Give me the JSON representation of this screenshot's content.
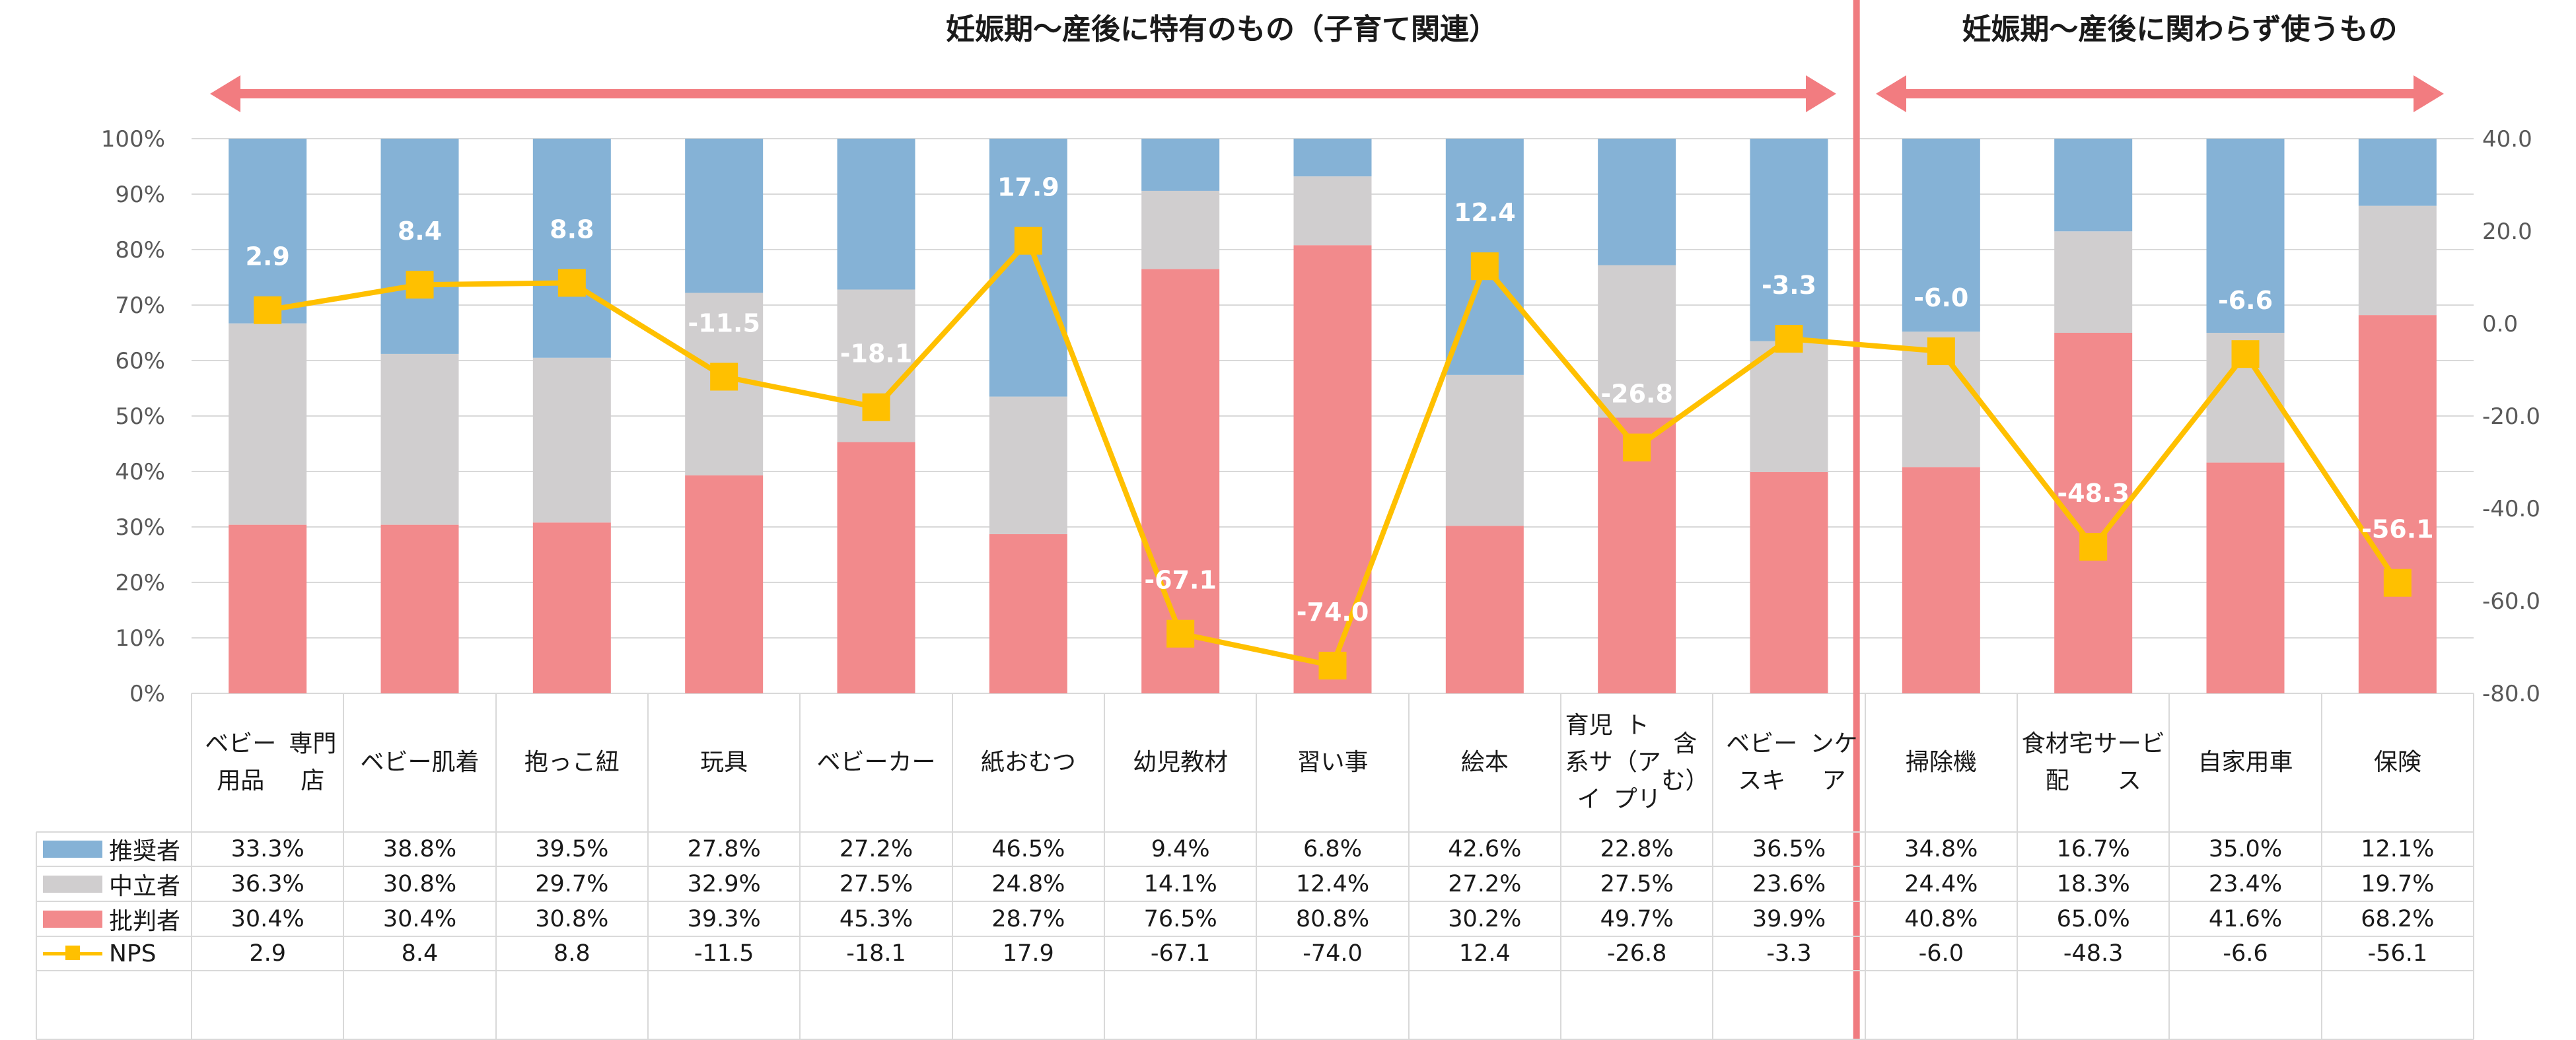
{
  "titles": {
    "section1": "妊娠期～産後に特有のもの（子育て関連）",
    "section2": "妊娠期～産後に関わらず使うもの"
  },
  "chart_data": {
    "type": "bar",
    "stacked": true,
    "categories": [
      "ベビー用品専門店",
      "ベビー肌着",
      "抱っこ紐",
      "玩具",
      "ベビーカー",
      "紙おむつ",
      "幼児教材",
      "習い事",
      "絵本",
      "育児系サイト（アプリ含む）",
      "ベビースキンケア",
      "掃除機",
      "食材宅配サービス",
      "自家用車",
      "保険"
    ],
    "category_lines": [
      [
        "ベビー用品",
        "専門店"
      ],
      [
        "ベビー肌着"
      ],
      [
        "抱っこ紐"
      ],
      [
        "玩具"
      ],
      [
        "ベビーカー"
      ],
      [
        "紙おむつ"
      ],
      [
        "幼児教材"
      ],
      [
        "習い事"
      ],
      [
        "絵本"
      ],
      [
        "育児系サイ",
        "ト（アプリ",
        "含む）"
      ],
      [
        "ベビースキ",
        "ンケア"
      ],
      [
        "掃除機"
      ],
      [
        "食材宅配",
        "サービス"
      ],
      [
        "自家用車"
      ],
      [
        "保険"
      ]
    ],
    "series": [
      {
        "name": "推奨者",
        "color": "#85B2D6",
        "values": [
          33.3,
          38.8,
          39.5,
          27.8,
          27.2,
          46.5,
          9.4,
          6.8,
          42.6,
          22.8,
          36.5,
          34.8,
          16.7,
          35.0,
          12.1
        ],
        "labels": [
          "33.3%",
          "38.8%",
          "39.5%",
          "27.8%",
          "27.2%",
          "46.5%",
          "9.4%",
          "6.8%",
          "42.6%",
          "22.8%",
          "36.5%",
          "34.8%",
          "16.7%",
          "35.0%",
          "12.1%"
        ]
      },
      {
        "name": "中立者",
        "color": "#D0CECF",
        "values": [
          36.3,
          30.8,
          29.7,
          32.9,
          27.5,
          24.8,
          14.1,
          12.4,
          27.2,
          27.5,
          23.6,
          24.4,
          18.3,
          23.4,
          19.7
        ],
        "labels": [
          "36.3%",
          "30.8%",
          "29.7%",
          "32.9%",
          "27.5%",
          "24.8%",
          "14.1%",
          "12.4%",
          "27.2%",
          "27.5%",
          "23.6%",
          "24.4%",
          "18.3%",
          "23.4%",
          "19.7%"
        ]
      },
      {
        "name": "批判者",
        "color": "#F28A8C",
        "values": [
          30.4,
          30.4,
          30.8,
          39.3,
          45.3,
          28.7,
          76.5,
          80.8,
          30.2,
          49.7,
          39.9,
          40.8,
          65.0,
          41.6,
          68.2
        ],
        "labels": [
          "30.4%",
          "30.4%",
          "30.8%",
          "39.3%",
          "45.3%",
          "28.7%",
          "76.5%",
          "80.8%",
          "30.2%",
          "49.7%",
          "39.9%",
          "40.8%",
          "65.0%",
          "41.6%",
          "68.2%"
        ]
      }
    ],
    "line": {
      "name": "NPS",
      "color": "#FFC000",
      "values": [
        2.9,
        8.4,
        8.8,
        -11.5,
        -18.1,
        17.9,
        -67.1,
        -74.0,
        12.4,
        -26.8,
        -3.3,
        -6.0,
        -48.3,
        -6.6,
        -56.1
      ],
      "labels": [
        "2.9",
        "8.4",
        "8.8",
        "-11.5",
        "-18.1",
        "17.9",
        "-67.1",
        "-74.0",
        "12.4",
        "-26.8",
        "-3.3",
        "-6.0",
        "-48.3",
        "-6.6",
        "-56.1"
      ]
    },
    "y_left": {
      "min": 0,
      "max": 100,
      "ticks": [
        "0%",
        "10%",
        "20%",
        "30%",
        "40%",
        "50%",
        "60%",
        "70%",
        "80%",
        "90%",
        "100%"
      ]
    },
    "y_right": {
      "min": -80,
      "max": 40,
      "ticks": [
        "-80.0",
        "-60.0",
        "-40.0",
        "-20.0",
        "0.0",
        "20.0",
        "40.0"
      ]
    },
    "groups": [
      {
        "label": "妊娠期～産後に特有のもの（子育て関連）",
        "first": 0,
        "last": 10
      },
      {
        "label": "妊娠期～産後に関わらず使うもの",
        "first": 11,
        "last": 14
      }
    ],
    "divider_color": "#F07C80",
    "grid": true
  }
}
